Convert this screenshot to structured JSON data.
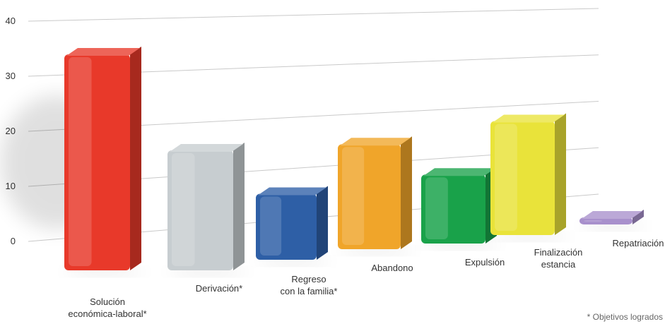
{
  "chart_data": {
    "type": "bar",
    "categories": [
      "Solución económica-laboral*",
      "Derivación*",
      "Regreso con la familia*",
      "Abandono",
      "Expulsión",
      "Finalización estancia",
      "Repatriación"
    ],
    "category_lines": [
      [
        "Solución",
        "económica-laboral*"
      ],
      [
        "Derivación*"
      ],
      [
        "Regreso",
        "con la familia*"
      ],
      [
        "Abandono"
      ],
      [
        "Expulsión"
      ],
      [
        "Finalización",
        "estancia"
      ],
      [
        "Repatriación"
      ]
    ],
    "values": [
      36,
      20,
      11,
      17.5,
      11.5,
      19,
      1
    ],
    "colors": [
      "#e8392a",
      "#c7cdd0",
      "#2e5fa6",
      "#f0a52a",
      "#19a24a",
      "#e9e33a",
      "#a890cc"
    ],
    "yticks": [
      0,
      10,
      20,
      30,
      40
    ],
    "ylim": [
      0,
      40
    ],
    "grid": true,
    "footnote": "* Objetivos logrados"
  }
}
